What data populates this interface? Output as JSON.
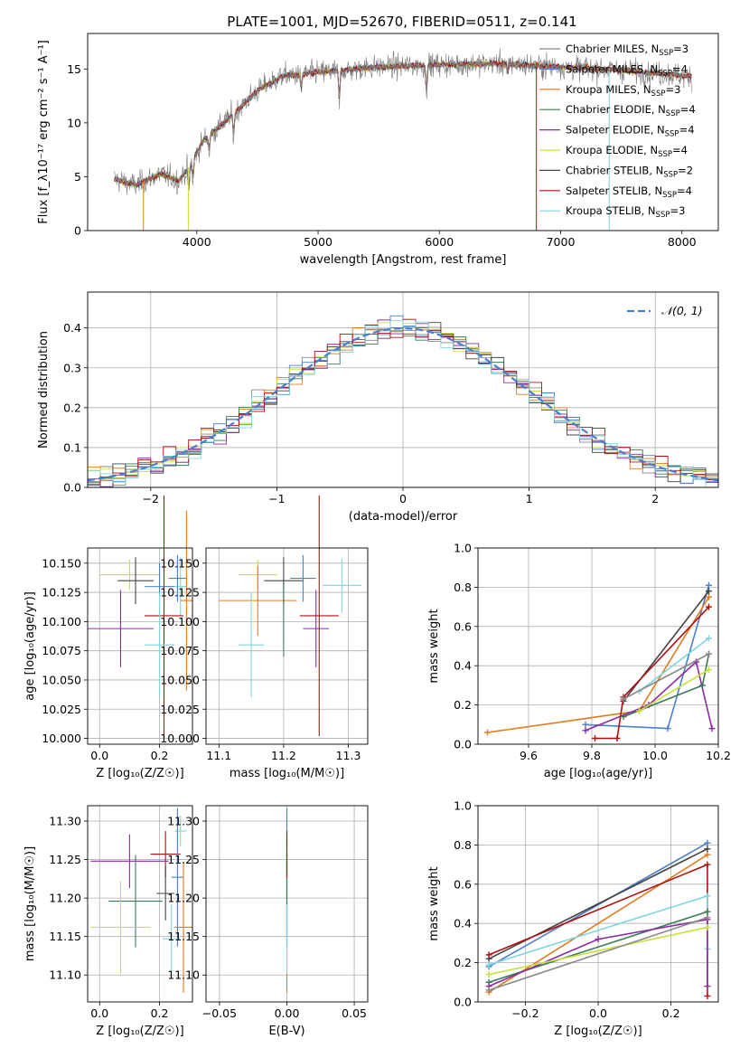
{
  "figure": {
    "title": "PLATE=1001, MJD=52670, FIBERID=0511, z=0.141"
  },
  "series_styles": [
    {
      "name": "Chabrier MILES, N$_{SSP}$=3",
      "color": "#888888"
    },
    {
      "name": "Salpeter MILES, N$_{SSP}$=4",
      "color": "#4a7fcf"
    },
    {
      "name": "Kroupa MILES, N$_{SSP}$=3",
      "color": "#e07b1f"
    },
    {
      "name": "Chabrier ELODIE, N$_{SSP}$=4",
      "color": "#3b7a57"
    },
    {
      "name": "Salpeter ELODIE, N$_{SSP}$=4",
      "color": "#8e2aa8"
    },
    {
      "name": "Kroupa ELODIE, N$_{SSP}$=4",
      "color": "#c9e03a"
    },
    {
      "name": "Chabrier STELIB, N$_{SSP}$=2",
      "color": "#444444"
    },
    {
      "name": "Salpeter STELIB, N$_{SSP}$=4",
      "color": "#b01010"
    },
    {
      "name": "Kroupa STELIB, N$_{SSP}$=3",
      "color": "#7fd6e0"
    }
  ],
  "legend_labels": [
    {
      "prefix": "Chabrier MILES, N",
      "sub": "SSP",
      "suffix": "=3",
      "color": "#888888"
    },
    {
      "prefix": "Salpeter MILES, N",
      "sub": "SSP",
      "suffix": "=4",
      "color": "#4a7fcf"
    },
    {
      "prefix": "Kroupa MILES, N",
      "sub": "SSP",
      "suffix": "=3",
      "color": "#e07b1f"
    },
    {
      "prefix": "Chabrier ELODIE, N",
      "sub": "SSP",
      "suffix": "=4",
      "color": "#3b7a57"
    },
    {
      "prefix": "Salpeter ELODIE, N",
      "sub": "SSP",
      "suffix": "=4",
      "color": "#8e2aa8"
    },
    {
      "prefix": "Kroupa ELODIE, N",
      "sub": "SSP",
      "suffix": "=4",
      "color": "#c9e03a"
    },
    {
      "prefix": "Chabrier STELIB, N",
      "sub": "SSP",
      "suffix": "=2",
      "color": "#444444"
    },
    {
      "prefix": "Salpeter STELIB, N",
      "sub": "SSP",
      "suffix": "=4",
      "color": "#b01010"
    },
    {
      "prefix": "Kroupa STELIB, N",
      "sub": "SSP",
      "suffix": "=3",
      "color": "#7fd6e0"
    }
  ],
  "chart_data": [
    {
      "id": "spectrum",
      "type": "line",
      "xlabel": "wavelength [Angstrom, rest frame]",
      "ylabel": "Flux [f_λ10⁻¹⁷ erg cm⁻² s⁻¹ A⁻¹]",
      "xlim": [
        3100,
        8300
      ],
      "ylim": [
        0,
        18.3
      ],
      "xticks": [
        4000,
        5000,
        6000,
        7000,
        8000
      ],
      "yticks": [
        0,
        5,
        10,
        15
      ],
      "legend": "right",
      "data_range": [
        3320,
        8080
      ],
      "continuum_knots": [
        [
          3320,
          4.8
        ],
        [
          3500,
          4.2
        ],
        [
          3700,
          5.3
        ],
        [
          3850,
          4.6
        ],
        [
          3950,
          6.2
        ],
        [
          4050,
          8.3
        ],
        [
          4300,
          10.8
        ],
        [
          4500,
          13.0
        ],
        [
          4700,
          14.3
        ],
        [
          5000,
          14.7
        ],
        [
          5500,
          15.2
        ],
        [
          6000,
          15.4
        ],
        [
          6500,
          15.5
        ],
        [
          7000,
          15.2
        ],
        [
          7500,
          14.9
        ],
        [
          8080,
          14.3
        ]
      ],
      "absorption_features": [
        [
          3934,
          2.5
        ],
        [
          3969,
          2.0
        ],
        [
          4102,
          1.5
        ],
        [
          4304,
          2.0
        ],
        [
          4861,
          1.5
        ],
        [
          5175,
          3.0
        ],
        [
          5893,
          2.5
        ],
        [
          6563,
          1.0
        ]
      ]
    },
    {
      "id": "residual-hist",
      "type": "step",
      "xlabel": "(data-model)/error",
      "ylabel": "Normed distribution",
      "xlim": [
        -2.5,
        2.5
      ],
      "ylim": [
        0,
        0.49
      ],
      "xticks": [
        -2,
        -1,
        0,
        1,
        2
      ],
      "yticks": [
        0,
        0.1,
        0.2,
        0.3,
        0.4
      ],
      "grid": true,
      "reference_curve": "𝒩(0, 1)",
      "reference_color": "#4a7fcf",
      "bin_width": 0.1
    },
    {
      "id": "age-vs-Z",
      "type": "errorbar",
      "xlabel": "Z [log₁₀(Z/Z☉)]",
      "ylabel": "age  [log₁₀(age/yr)]",
      "xlim": [
        -0.04,
        0.31
      ],
      "ylim": [
        9.995,
        10.163
      ],
      "xticks": [
        0.0,
        0.2
      ],
      "yticks": [
        10.0,
        10.025,
        10.05,
        10.075,
        10.1,
        10.125,
        10.15
      ],
      "grid": true,
      "points": [
        {
          "x": 0.1,
          "y": 10.14,
          "xerr": 0.1,
          "yerr": 0.013,
          "series": 5
        },
        {
          "x": 0.12,
          "y": 10.135,
          "xerr": 0.06,
          "yerr": 0.02,
          "series": 6
        },
        {
          "x": 0.2,
          "y": 10.13,
          "xerr": 0.05,
          "yerr": 0.02,
          "series": 1
        },
        {
          "x": 0.27,
          "y": 10.13,
          "xerr": 0.02,
          "yerr": 0.025,
          "series": 8
        },
        {
          "x": 0.26,
          "y": 10.137,
          "xerr": 0.03,
          "yerr": 0.02,
          "series": 1
        },
        {
          "x": 0.29,
          "y": 10.118,
          "xerr": 0.02,
          "yerr": 0.077,
          "series": 2
        },
        {
          "x": 0.07,
          "y": 10.094,
          "xerr": 0.11,
          "yerr": 0.033,
          "series": 4
        },
        {
          "x": 0.215,
          "y": 10.105,
          "xerr": 0.065,
          "yerr": 0.103,
          "series": 7
        },
        {
          "x": 0.2,
          "y": 10.08,
          "xerr": 0.05,
          "yerr": 0.045,
          "series": 8
        }
      ]
    },
    {
      "id": "age-vs-mass",
      "type": "errorbar",
      "xlabel": "mass [log₁₀(M/M☉)]",
      "ylabel": "",
      "xlim": [
        11.08,
        11.33
      ],
      "ylim": [
        9.995,
        10.163
      ],
      "xticks": [
        11.1,
        11.2,
        11.3
      ],
      "yticks": [
        10.0,
        10.025,
        10.05,
        10.075,
        10.1,
        10.125,
        10.15
      ],
      "grid": true,
      "points": [
        {
          "x": 11.16,
          "y": 10.14,
          "xerr": 0.03,
          "yerr": 0.013,
          "series": 5
        },
        {
          "x": 11.2,
          "y": 10.135,
          "xerr": 0.03,
          "yerr": 0.02,
          "series": 6
        },
        {
          "x": 11.23,
          "y": 10.137,
          "xerr": 0.02,
          "yerr": 0.02,
          "series": 1
        },
        {
          "x": 11.29,
          "y": 10.131,
          "xerr": 0.03,
          "yerr": 0.023,
          "series": 8
        },
        {
          "x": 11.16,
          "y": 10.118,
          "xerr": 0.06,
          "yerr": 0.03,
          "series": 2
        },
        {
          "x": 11.25,
          "y": 10.094,
          "xerr": 0.02,
          "yerr": 0.033,
          "series": 4
        },
        {
          "x": 11.255,
          "y": 10.105,
          "xerr": 0.03,
          "yerr": 0.103,
          "series": 7
        },
        {
          "x": 11.15,
          "y": 10.08,
          "xerr": 0.02,
          "yerr": 0.045,
          "series": 8
        },
        {
          "x": 11.2,
          "y": 10.1,
          "xerr": 0.0,
          "yerr": 0.03,
          "series": 3
        }
      ]
    },
    {
      "id": "weight-vs-age",
      "type": "line",
      "xlabel": "age  [log₁₀(age/yr)]",
      "ylabel": "mass weight",
      "xlim": [
        9.44,
        10.2
      ],
      "ylim": [
        0,
        1.0
      ],
      "xticks": [
        9.6,
        9.8,
        10.0,
        10.2
      ],
      "yticks": [
        0.0,
        0.2,
        0.4,
        0.6,
        0.8,
        1.0
      ],
      "grid": true,
      "series": [
        {
          "series": 1,
          "x": [
            9.78,
            10.04,
            10.17
          ],
          "y": [
            0.1,
            0.08,
            0.81
          ]
        },
        {
          "series": 2,
          "x": [
            9.47,
            9.95,
            10.17
          ],
          "y": [
            0.06,
            0.17,
            0.75
          ]
        },
        {
          "series": 4,
          "x": [
            9.78,
            9.98,
            10.13,
            10.18
          ],
          "y": [
            0.07,
            0.2,
            0.42,
            0.08
          ]
        },
        {
          "series": 6,
          "x": [
            9.9,
            10.17
          ],
          "y": [
            0.22,
            0.78
          ]
        },
        {
          "series": 7,
          "x": [
            9.81,
            9.88,
            9.9,
            10.17
          ],
          "y": [
            0.03,
            0.03,
            0.24,
            0.7
          ]
        },
        {
          "series": 8,
          "x": [
            9.95,
            10.17
          ],
          "y": [
            0.27,
            0.54
          ]
        },
        {
          "series": 3,
          "x": [
            9.9,
            10.15,
            10.17
          ],
          "y": [
            0.14,
            0.3,
            0.46
          ]
        },
        {
          "series": 5,
          "x": [
            9.95,
            10.17
          ],
          "y": [
            0.17,
            0.38
          ]
        },
        {
          "series": 0,
          "x": [
            9.9,
            10.17
          ],
          "y": [
            0.23,
            0.46
          ]
        }
      ]
    },
    {
      "id": "mass-vs-Z",
      "type": "errorbar",
      "xlabel": "Z [log₁₀(Z/Z☉)]",
      "ylabel": "mass [log₁₀(M/M☉)]",
      "xlim": [
        -0.04,
        0.31
      ],
      "ylim": [
        11.065,
        11.32
      ],
      "xticks": [
        0.0,
        0.2
      ],
      "yticks": [
        11.1,
        11.15,
        11.2,
        11.25,
        11.3
      ],
      "grid": true,
      "points": [
        {
          "x": 0.27,
          "y": 11.287,
          "xerr": 0.02,
          "yerr": 0.02,
          "series": 8
        },
        {
          "x": 0.22,
          "y": 11.257,
          "xerr": 0.05,
          "yerr": 0.03,
          "series": 7
        },
        {
          "x": 0.1,
          "y": 11.248,
          "xerr": 0.13,
          "yerr": 0.035,
          "series": 4
        },
        {
          "x": 0.26,
          "y": 11.227,
          "xerr": 0.02,
          "yerr": 0.09,
          "series": 1
        },
        {
          "x": 0.22,
          "y": 11.206,
          "xerr": 0.03,
          "yerr": 0.035,
          "series": 6
        },
        {
          "x": 0.12,
          "y": 11.196,
          "xerr": 0.09,
          "yerr": 0.06,
          "series": 3
        },
        {
          "x": 0.07,
          "y": 11.162,
          "xerr": 0.1,
          "yerr": 0.06,
          "series": 5
        },
        {
          "x": 0.28,
          "y": 11.162,
          "xerr": 0.03,
          "yerr": 0.085,
          "series": 2
        },
        {
          "x": 0.24,
          "y": 11.147,
          "xerr": 0.03,
          "yerr": 0.045,
          "series": 8
        }
      ]
    },
    {
      "id": "mass-vs-ebv",
      "type": "errorbar",
      "xlabel": "E(B-V)",
      "ylabel": "",
      "xlim": [
        -0.06,
        0.06
      ],
      "ylim": [
        11.065,
        11.32
      ],
      "xticks": [
        -0.05,
        0.0,
        0.05
      ],
      "yticks": [
        11.1,
        11.15,
        11.2,
        11.25,
        11.3
      ],
      "grid": true,
      "points": [
        {
          "x": 0.0,
          "y": 11.287,
          "xerr": 0,
          "yerr": 0.02,
          "series": 8
        },
        {
          "x": 0.0,
          "y": 11.248,
          "xerr": 0,
          "yerr": 0.035,
          "series": 4
        },
        {
          "x": 0.0,
          "y": 11.227,
          "xerr": 0,
          "yerr": 0.09,
          "series": 1
        },
        {
          "x": 0.0,
          "y": 11.162,
          "xerr": 0,
          "yerr": 0.085,
          "series": 2
        },
        {
          "x": 0.0,
          "y": 11.196,
          "xerr": 0,
          "yerr": 0.06,
          "series": 3
        },
        {
          "x": 0.0,
          "y": 11.147,
          "xerr": 0,
          "yerr": 0.045,
          "series": 8
        },
        {
          "x": 0.0,
          "y": 11.257,
          "xerr": 0,
          "yerr": 0.03,
          "series": 7
        }
      ]
    },
    {
      "id": "weight-vs-Z",
      "type": "line",
      "xlabel": "Z [log₁₀(Z/Z☉)]",
      "ylabel": "mass weight",
      "xlim": [
        -0.33,
        0.33
      ],
      "ylim": [
        0,
        1.0
      ],
      "xticks": [
        -0.2,
        0.0,
        0.2
      ],
      "yticks": [
        0.0,
        0.2,
        0.4,
        0.6,
        0.8,
        1.0
      ],
      "grid": true,
      "series": [
        {
          "series": 1,
          "x": [
            -0.3,
            0.3
          ],
          "y": [
            0.18,
            0.81
          ]
        },
        {
          "series": 2,
          "x": [
            -0.3,
            0.3
          ],
          "y": [
            0.05,
            0.75
          ]
        },
        {
          "series": 6,
          "x": [
            -0.3,
            0.3
          ],
          "y": [
            0.22,
            0.78
          ]
        },
        {
          "series": 7,
          "x": [
            -0.3,
            0.3,
            0.3
          ],
          "y": [
            0.24,
            0.7,
            0.03
          ]
        },
        {
          "series": 8,
          "x": [
            -0.3,
            0.3,
            0.3
          ],
          "y": [
            0.19,
            0.54,
            0.27
          ]
        },
        {
          "series": 3,
          "x": [
            -0.3,
            0.3
          ],
          "y": [
            0.1,
            0.46
          ]
        },
        {
          "series": 4,
          "x": [
            -0.3,
            0.0,
            0.3,
            0.3
          ],
          "y": [
            0.08,
            0.32,
            0.42,
            0.08
          ]
        },
        {
          "series": 5,
          "x": [
            -0.3,
            0.3
          ],
          "y": [
            0.14,
            0.38
          ]
        },
        {
          "series": 0,
          "x": [
            -0.3,
            0.3
          ],
          "y": [
            0.06,
            0.43
          ]
        }
      ]
    }
  ]
}
